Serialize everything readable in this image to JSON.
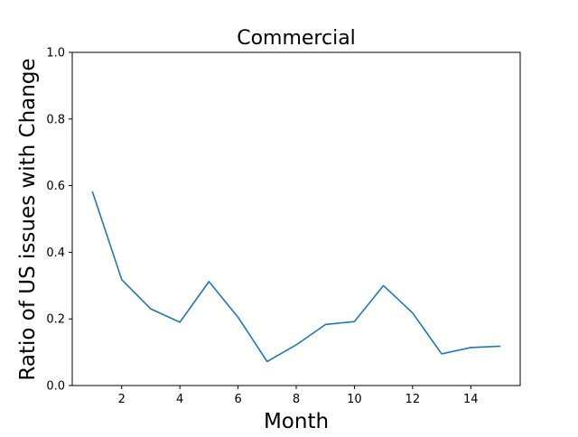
{
  "chart_data": {
    "type": "line",
    "title": "Commercial",
    "xlabel": "Month",
    "ylabel": "Ratio of US issues with Change",
    "xlim": [
      0.3,
      15.7
    ],
    "ylim": [
      0.0,
      1.0
    ],
    "xticks": [
      2,
      4,
      6,
      8,
      10,
      12,
      14
    ],
    "xtick_labels": [
      "2",
      "4",
      "6",
      "8",
      "10",
      "12",
      "14"
    ],
    "yticks": [
      0.0,
      0.2,
      0.4,
      0.6,
      0.8,
      1.0
    ],
    "ytick_labels": [
      "0.0",
      "0.2",
      "0.4",
      "0.6",
      "0.8",
      "1.0"
    ],
    "grid": false,
    "legend": false,
    "series": [
      {
        "color": "#1f77b4",
        "x": [
          1,
          2,
          3,
          4,
          5,
          6,
          7,
          8,
          9,
          10,
          11,
          12,
          13,
          14,
          15
        ],
        "y": [
          0.58,
          0.318,
          0.23,
          0.19,
          0.312,
          0.205,
          0.072,
          0.122,
          0.183,
          0.192,
          0.3,
          0.218,
          0.095,
          0.114,
          0.118
        ]
      }
    ]
  }
}
